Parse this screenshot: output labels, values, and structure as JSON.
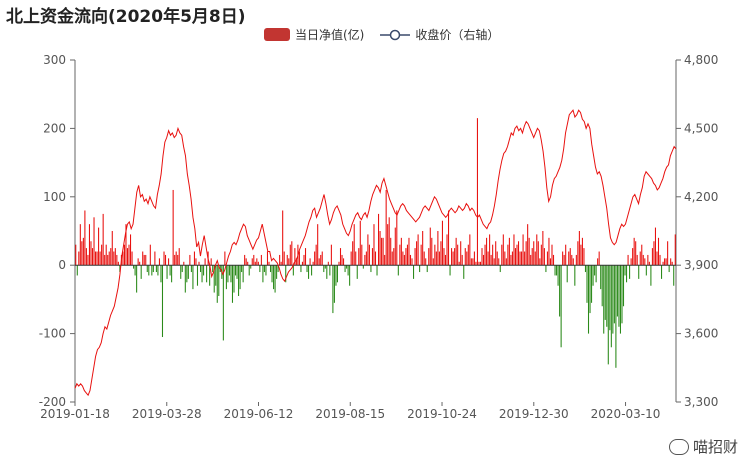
{
  "chart_data": {
    "type": "bar",
    "title": "北上资金流向(2020年5月8日)",
    "colors": {
      "positive": "#e8110f",
      "negative": "#2b8a1a",
      "line": "#e8110f",
      "legend_bar": "#c23531"
    },
    "left_axis": {
      "min": -200,
      "max": 300,
      "ticks": [
        300,
        200,
        100,
        0,
        -100,
        -200
      ]
    },
    "right_axis": {
      "min": 3300,
      "max": 4800,
      "ticks": [
        "4,800",
        "4,500",
        "4,200",
        "3,900",
        "3,600",
        "3,300"
      ]
    },
    "x_axis_labels": [
      "2019-01-18",
      "2019-03-28",
      "2019-06-12",
      "2019-08-15",
      "2019-10-24",
      "2019-12-30",
      "2020-03-10"
    ],
    "legend": [
      {
        "name": "当日净值(亿)",
        "kind": "bar"
      },
      {
        "name": "收盘价（右轴）",
        "kind": "line"
      }
    ],
    "series": [
      {
        "name": "当日净值(亿)",
        "axis": "left",
        "values": [
          30,
          -15,
          20,
          60,
          35,
          40,
          80,
          25,
          15,
          60,
          35,
          25,
          70,
          20,
          20,
          55,
          20,
          30,
          75,
          15,
          30,
          15,
          20,
          25,
          50,
          20,
          25,
          15,
          5,
          -10,
          15,
          20,
          30,
          60,
          25,
          30,
          45,
          20,
          -5,
          -15,
          -40,
          10,
          5,
          -20,
          20,
          15,
          15,
          -10,
          -15,
          30,
          -15,
          -10,
          20,
          -10,
          -15,
          10,
          -25,
          -105,
          20,
          15,
          -20,
          10,
          -15,
          -25,
          110,
          15,
          20,
          15,
          25,
          -20,
          -10,
          5,
          -40,
          -25,
          -20,
          15,
          -10,
          -35,
          20,
          10,
          -30,
          5,
          -10,
          -25,
          -15,
          10,
          -25,
          20,
          -30,
          10,
          -10,
          -40,
          -30,
          -55,
          -45,
          -10,
          -20,
          -110,
          20,
          -35,
          -25,
          -15,
          -25,
          -55,
          -40,
          -15,
          -20,
          -45,
          -35,
          -10,
          -25,
          15,
          10,
          5,
          -15,
          -5,
          10,
          15,
          5,
          10,
          5,
          -10,
          15,
          -25,
          -10,
          -15,
          20,
          5,
          -10,
          -25,
          -35,
          -40,
          -20,
          -10,
          15,
          5,
          80,
          20,
          -25,
          15,
          10,
          30,
          35,
          -15,
          25,
          10,
          30,
          20,
          -10,
          5,
          15,
          25,
          -10,
          -20,
          10,
          -15,
          5,
          20,
          30,
          60,
          10,
          15,
          20,
          -10,
          -5,
          -20,
          5,
          -15,
          30,
          -70,
          -55,
          -30,
          -25,
          5,
          25,
          15,
          10,
          -10,
          -5,
          -15,
          -30,
          20,
          35,
          60,
          20,
          -20,
          25,
          65,
          30,
          -5,
          15,
          20,
          45,
          30,
          -10,
          25,
          60,
          20,
          -15,
          75,
          50,
          40,
          40,
          15,
          110,
          60,
          70,
          40,
          20,
          25,
          55,
          80,
          -15,
          30,
          40,
          20,
          15,
          25,
          30,
          40,
          15,
          10,
          -20,
          25,
          35,
          45,
          -10,
          30,
          50,
          20,
          10,
          -10,
          25,
          55,
          40,
          10,
          30,
          20,
          50,
          20,
          35,
          65,
          25,
          15,
          45,
          80,
          -15,
          25,
          20,
          25,
          40,
          30,
          5,
          35,
          15,
          -20,
          25,
          20,
          30,
          45,
          10,
          10,
          20,
          5,
          215,
          5,
          5,
          25,
          15,
          30,
          40,
          20,
          45,
          15,
          30,
          10,
          35,
          20,
          10,
          -10,
          30,
          45,
          20,
          10,
          30,
          40,
          15,
          20,
          45,
          25,
          30,
          35,
          20,
          20,
          45,
          20,
          35,
          60,
          40,
          15,
          25,
          35,
          20,
          45,
          35,
          10,
          30,
          50,
          25,
          -10,
          20,
          40,
          10,
          30,
          15,
          -15,
          -15,
          -30,
          -75,
          -120,
          20,
          15,
          30,
          -25,
          20,
          25,
          15,
          10,
          -30,
          15,
          35,
          50,
          30,
          40,
          25,
          -10,
          -55,
          -100,
          -70,
          -55,
          -30,
          -15,
          -25,
          10,
          20,
          -35,
          -60,
          -100,
          -80,
          -90,
          -145,
          -95,
          -120,
          -100,
          -85,
          -150,
          -75,
          -90,
          -100,
          -85,
          -60,
          -15,
          -25,
          15,
          -20,
          10,
          25,
          40,
          35,
          15,
          -20,
          20,
          30,
          15,
          10,
          -15,
          15,
          5,
          -30,
          25,
          35,
          55,
          20,
          40,
          15,
          -20,
          5,
          10,
          10,
          35,
          -10,
          10,
          5,
          -30,
          45
        ]
      },
      {
        "name": "收盘价（右轴）",
        "axis": "right",
        "values": [
          3360,
          3380,
          3370,
          3380,
          3370,
          3350,
          3340,
          3330,
          3350,
          3400,
          3450,
          3500,
          3530,
          3540,
          3560,
          3600,
          3630,
          3620,
          3650,
          3680,
          3700,
          3720,
          3760,
          3800,
          3860,
          3940,
          3990,
          4040,
          4080,
          4090,
          4060,
          4080,
          4150,
          4220,
          4250,
          4200,
          4210,
          4180,
          4190,
          4170,
          4200,
          4180,
          4160,
          4150,
          4210,
          4250,
          4300,
          4380,
          4440,
          4460,
          4490,
          4470,
          4480,
          4460,
          4470,
          4500,
          4480,
          4470,
          4420,
          4380,
          4300,
          4250,
          4190,
          4110,
          4060,
          3980,
          4000,
          3940,
          3990,
          4030,
          3980,
          3930,
          3900,
          3850,
          3870,
          3900,
          3920,
          3890,
          3880,
          3860,
          3880,
          3910,
          3940,
          3960,
          3990,
          4000,
          3990,
          4010,
          4040,
          4060,
          4080,
          4070,
          4030,
          4010,
          3990,
          3970,
          3990,
          4010,
          4020,
          4050,
          4080,
          4040,
          4000,
          3960,
          3960,
          3920,
          3930,
          3920,
          3910,
          3890,
          3860,
          3840,
          3830,
          3850,
          3870,
          3880,
          3890,
          3910,
          3920,
          3940,
          3970,
          3990,
          4010,
          4030,
          4060,
          4090,
          4110,
          4140,
          4150,
          4110,
          4130,
          4150,
          4180,
          4210,
          4170,
          4120,
          4080,
          4100,
          4130,
          4150,
          4160,
          4140,
          4120,
          4080,
          4060,
          4040,
          4030,
          4050,
          4080,
          4100,
          4120,
          4130,
          4110,
          4100,
          4120,
          4130,
          4110,
          4140,
          4180,
          4210,
          4230,
          4250,
          4240,
          4220,
          4260,
          4280,
          4250,
          4220,
          4190,
          4170,
          4150,
          4130,
          4120,
          4140,
          4160,
          4170,
          4160,
          4140,
          4130,
          4120,
          4110,
          4100,
          4090,
          4100,
          4110,
          4130,
          4150,
          4160,
          4150,
          4140,
          4160,
          4180,
          4200,
          4190,
          4170,
          4150,
          4130,
          4120,
          4110,
          4120,
          4140,
          4150,
          4140,
          4130,
          4140,
          4160,
          4150,
          4140,
          4150,
          4170,
          4160,
          4140,
          4150,
          4140,
          4120,
          4110,
          4120,
          4100,
          4080,
          4070,
          4060,
          4080,
          4090,
          4120,
          4160,
          4210,
          4270,
          4320,
          4360,
          4390,
          4400,
          4420,
          4450,
          4480,
          4470,
          4500,
          4510,
          4490,
          4500,
          4480,
          4510,
          4530,
          4520,
          4500,
          4480,
          4460,
          4480,
          4500,
          4490,
          4450,
          4400,
          4330,
          4240,
          4180,
          4200,
          4250,
          4280,
          4290,
          4310,
          4330,
          4360,
          4410,
          4480,
          4520,
          4560,
          4570,
          4580,
          4550,
          4560,
          4580,
          4570,
          4540,
          4530,
          4500,
          4520,
          4500,
          4430,
          4380,
          4330,
          4300,
          4310,
          4290,
          4250,
          4200,
          4150,
          4080,
          4020,
          4000,
          3990,
          4000,
          4030,
          4060,
          4080,
          4070,
          4080,
          4110,
          4140,
          4170,
          4200,
          4210,
          4190,
          4170,
          4210,
          4240,
          4290,
          4310,
          4300,
          4290,
          4280,
          4260,
          4250,
          4230,
          4240,
          4260,
          4280,
          4310,
          4330,
          4340,
          4380,
          4400,
          4420,
          4410
        ]
      }
    ]
  },
  "watermark": {
    "text": "喵招财",
    "icon": "wechat-icon"
  }
}
